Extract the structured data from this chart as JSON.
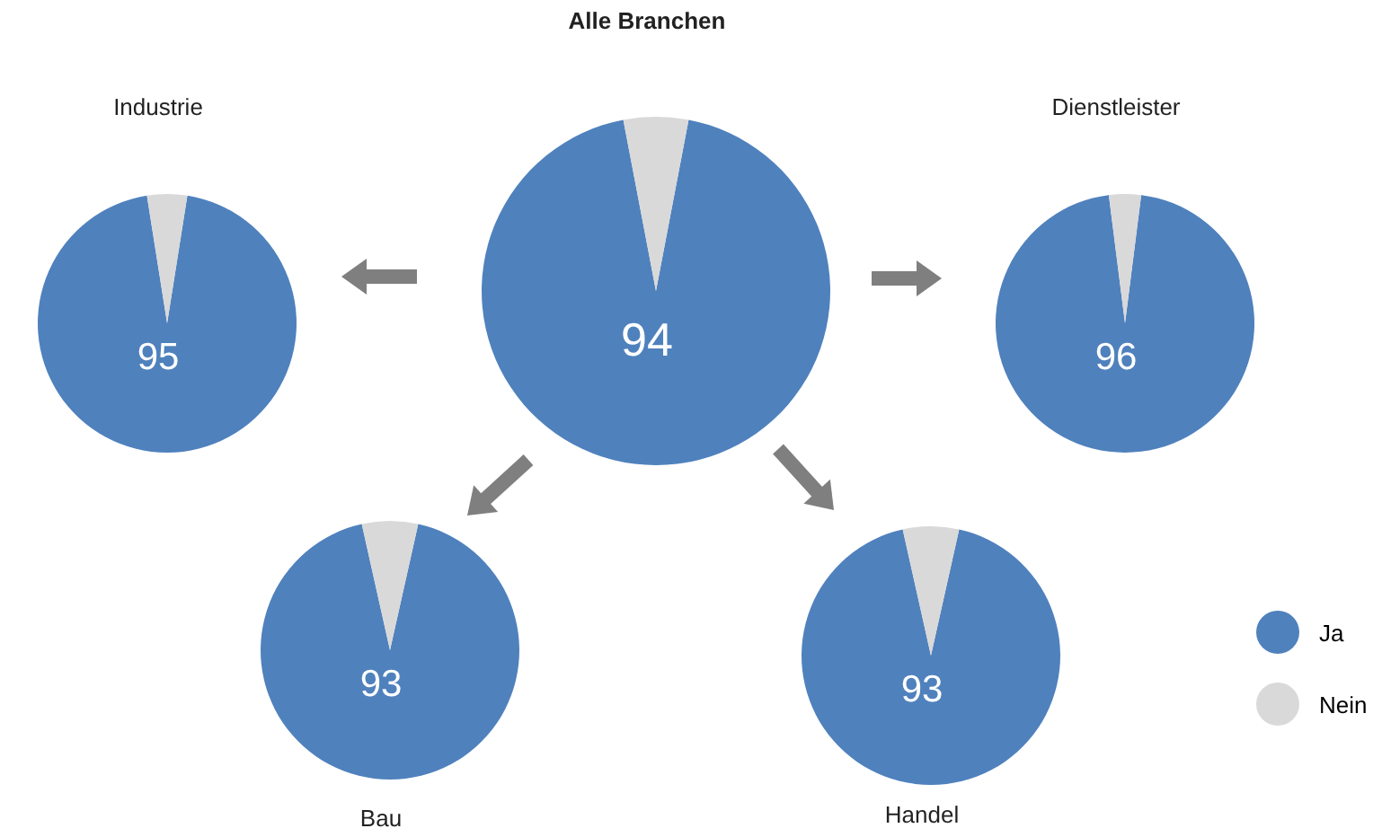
{
  "chart_data": [
    {
      "type": "pie",
      "title": "Alle Branchen",
      "categories": [
        "Ja",
        "Nein"
      ],
      "values": [
        94,
        6
      ],
      "colors": [
        "#4f81bd",
        "#d9d9d9"
      ],
      "value_labels": [
        "94",
        null
      ],
      "legend": "bottom right"
    },
    {
      "type": "pie",
      "title": "Industrie",
      "categories": [
        null,
        null
      ],
      "values": [
        95,
        5
      ],
      "colors": [
        "#4f81bd",
        "#d9d9d9"
      ],
      "value_labels": [
        "95",
        null
      ]
    },
    {
      "type": "pie",
      "title": "Dienstleister",
      "categories": [
        null,
        null
      ],
      "values": [
        96,
        4
      ],
      "colors": [
        "#4f81bd",
        "#d9d9d9"
      ],
      "value_labels": [
        "96",
        null
      ]
    },
    {
      "type": "pie",
      "title": "Bau",
      "categories": [
        null,
        null
      ],
      "values": [
        93,
        7
      ],
      "colors": [
        "#4f81bd",
        "#d9d9d9"
      ],
      "value_labels": [
        "93",
        null
      ]
    },
    {
      "type": "pie",
      "title": "Handel",
      "categories": [
        null,
        null
      ],
      "values": [
        93,
        7
      ],
      "colors": [
        "#4f81bd",
        "#d9d9d9"
      ],
      "value_labels": [
        "93",
        null
      ]
    }
  ]
}
